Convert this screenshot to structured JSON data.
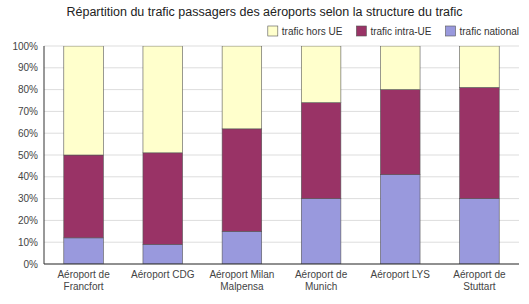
{
  "chart_data": {
    "type": "bar",
    "stacked": true,
    "title": "Répartition du trafic passagers des aéroports selon la structure du trafic",
    "categories": [
      "Aéroport de\nFrancfort",
      "Aéroport CDG",
      "Aéroport Milan\nMalpensa",
      "Aéroport de\nMunich",
      "Aéroport LYS",
      "Aéroport de\nStuttart"
    ],
    "series": [
      {
        "name": "trafic national",
        "color": "#9999dd",
        "values": [
          12,
          9,
          15,
          30,
          41,
          30
        ]
      },
      {
        "name": "trafic intra-UE",
        "color": "#993366",
        "values": [
          38,
          42,
          47,
          44,
          39,
          51
        ]
      },
      {
        "name": "trafic hors UE",
        "color": "#ffffcc",
        "values": [
          50,
          49,
          38,
          26,
          20,
          19
        ]
      }
    ],
    "ylim": [
      0,
      100
    ],
    "yticks": [
      {
        "value": 0,
        "label": "0%"
      },
      {
        "value": 10,
        "label": "10%"
      },
      {
        "value": 20,
        "label": "20%"
      },
      {
        "value": 30,
        "label": "30%"
      },
      {
        "value": 40,
        "label": "40%"
      },
      {
        "value": 50,
        "label": "50%"
      },
      {
        "value": 60,
        "label": "60%"
      },
      {
        "value": 70,
        "label": "70%"
      },
      {
        "value": 80,
        "label": "80%"
      },
      {
        "value": 90,
        "label": "90%"
      },
      {
        "value": 100,
        "label": "100%"
      }
    ],
    "grid": true,
    "legend": "upper right"
  }
}
